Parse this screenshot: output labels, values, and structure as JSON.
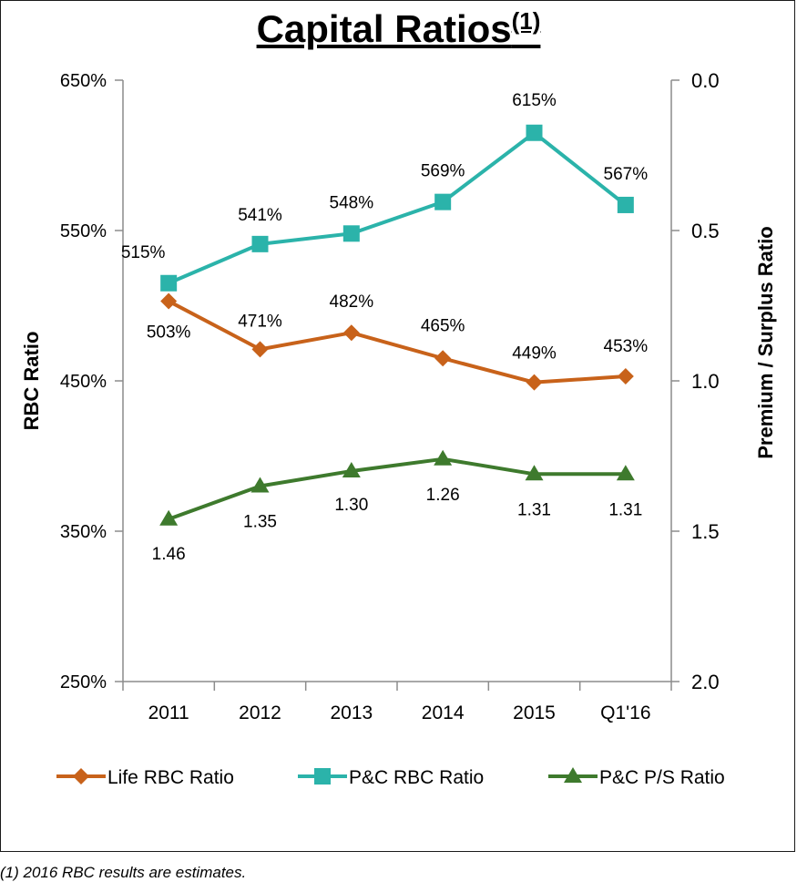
{
  "chart_data": {
    "type": "line",
    "title": "Capital Ratios",
    "title_superscript": "(1)",
    "categories": [
      "2011",
      "2012",
      "2013",
      "2014",
      "2015",
      "Q1'16"
    ],
    "y_left": {
      "label": "RBC Ratio",
      "min": 250,
      "max": 650,
      "ticks": [
        "650%",
        "550%",
        "450%",
        "350%",
        "250%"
      ],
      "tick_values": [
        650,
        550,
        450,
        350,
        250
      ]
    },
    "y_right": {
      "label": "Premium / Surplus Ratio",
      "min": 0.0,
      "max": 2.0,
      "reversed": true,
      "ticks": [
        "0.0",
        "0.5",
        "1.0",
        "1.5",
        "2.0"
      ],
      "tick_values": [
        0.0,
        0.5,
        1.0,
        1.5,
        2.0
      ]
    },
    "series": [
      {
        "name": "Life RBC Ratio",
        "axis": "left",
        "color": "#C8621A",
        "marker": "diamond",
        "values": [
          503,
          471,
          482,
          465,
          449,
          453
        ],
        "labels": [
          "503%",
          "471%",
          "482%",
          "465%",
          "449%",
          "453%"
        ]
      },
      {
        "name": "P&C RBC Ratio",
        "axis": "left",
        "color": "#2BB3AA",
        "marker": "square",
        "values": [
          515,
          541,
          548,
          569,
          615,
          567
        ],
        "labels": [
          "515%",
          "541%",
          "548%",
          "569%",
          "615%",
          "567%"
        ]
      },
      {
        "name": "P&C P/S Ratio",
        "axis": "right",
        "color": "#3E7A2D",
        "marker": "triangle",
        "values": [
          1.46,
          1.35,
          1.3,
          1.26,
          1.31,
          1.31
        ],
        "labels": [
          "1.46",
          "1.35",
          "1.30",
          "1.26",
          "1.31",
          "1.31"
        ]
      }
    ],
    "legend": "bottom",
    "grid": false
  },
  "footnote": "(1)   2016 RBC results are estimates."
}
